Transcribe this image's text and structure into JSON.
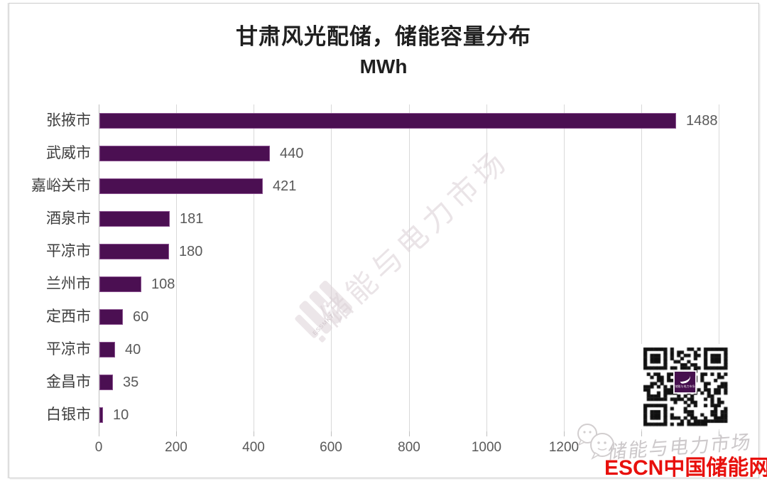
{
  "page": {
    "title": "甘肃风光配储，储能容量分布",
    "subtitle": "MWh"
  },
  "chart_data": {
    "type": "bar",
    "orientation": "horizontal",
    "title": "甘肃风光配储，储能容量分布",
    "unit_label": "MWh",
    "categories": [
      "张掖市",
      "武威市",
      "嘉峪关市",
      "酒泉市",
      "平凉市",
      "兰州市",
      "定西市",
      "平凉市",
      "金昌市",
      "白银市"
    ],
    "values": [
      1488,
      440,
      421,
      181,
      180,
      108,
      60,
      40,
      35,
      10
    ],
    "data_labels_shown": true,
    "xlim": [
      0,
      1600
    ],
    "x_ticks": [
      0,
      200,
      400,
      600,
      800,
      1000,
      1200,
      1400,
      1600
    ],
    "x_tick_labels_visible": [
      "0",
      "200",
      "400",
      "600",
      "800",
      "1000",
      "1200"
    ],
    "grid": true,
    "legend": "none",
    "bar_color": "#4b0f52",
    "gridline_color": "#d9d9d9",
    "label_color": "#595959",
    "category_color": "#3d3d3d"
  },
  "watermark": {
    "center_text": "储能与电力市场",
    "logo_caption": "ESSMKT",
    "bottom_gray_text": "储能与电力市场",
    "bottom_red_text": "ESCN中国储能网",
    "red_color": "#e8100c"
  },
  "qr": {
    "center_logo_color": "#46104e",
    "center_logo_caption": "储能与电力市场"
  }
}
